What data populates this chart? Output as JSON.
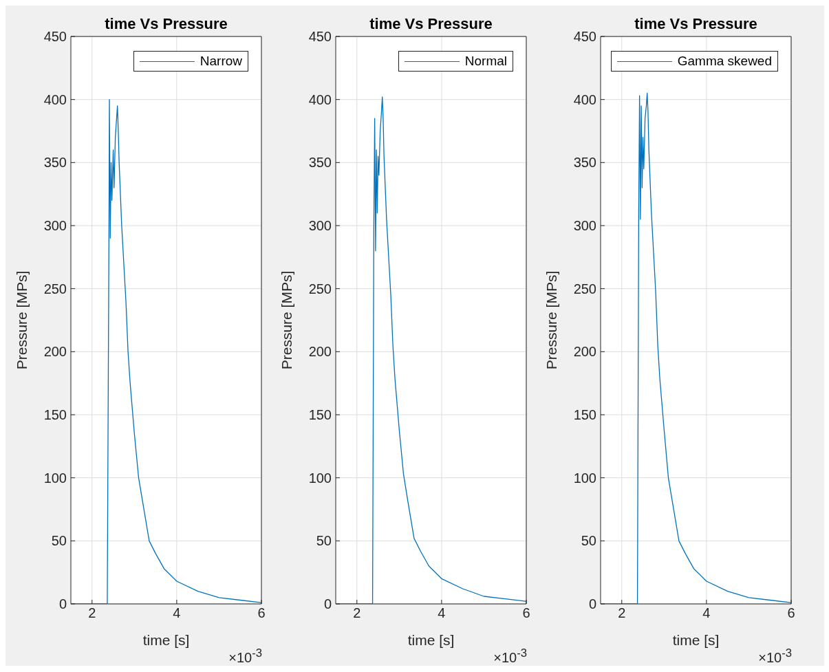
{
  "chart_data": [
    {
      "type": "line",
      "title": "time Vs Pressure",
      "xlabel": "time [s]",
      "ylabel": "Pressure [MPs]",
      "xlim": [
        1.5,
        6
      ],
      "xticks": [
        2,
        4,
        6
      ],
      "ylim": [
        0,
        450
      ],
      "yticks": [
        0,
        50,
        100,
        150,
        200,
        250,
        300,
        350,
        400,
        450
      ],
      "grid": true,
      "legend": "top right",
      "annotations": [
        "×10$^{-3}$"
      ],
      "series": [
        {
          "name": "Narrow",
          "color": "#0072bd",
          "x": [
            1.5,
            2.36,
            2.4,
            2.41,
            2.43,
            2.45,
            2.47,
            2.5,
            2.52,
            2.55,
            2.58,
            2.6,
            2.62,
            2.64,
            2.7,
            2.8,
            2.85,
            2.9,
            3.0,
            3.1,
            3.2,
            3.3,
            3.35,
            3.5,
            3.7,
            4.0,
            4.5,
            5.0,
            5.5,
            6.0
          ],
          "values": [
            0,
            0,
            300,
            400,
            290,
            350,
            320,
            360,
            330,
            370,
            385,
            395,
            375,
            350,
            300,
            240,
            200,
            175,
            135,
            100,
            80,
            60,
            50,
            40,
            28,
            18,
            10,
            5,
            3,
            1
          ]
        }
      ]
    },
    {
      "type": "line",
      "title": "time Vs Pressure",
      "xlabel": "time [s]",
      "ylabel": "Pressure [MPs]",
      "xlim": [
        1.5,
        6
      ],
      "xticks": [
        2,
        4,
        6
      ],
      "ylim": [
        0,
        450
      ],
      "yticks": [
        0,
        50,
        100,
        150,
        200,
        250,
        300,
        350,
        400,
        450
      ],
      "grid": true,
      "legend": "top right",
      "annotations": [
        "×10$^{-3}$"
      ],
      "series": [
        {
          "name": "Normal",
          "color": "#0072bd",
          "x": [
            1.5,
            2.37,
            2.4,
            2.42,
            2.44,
            2.46,
            2.48,
            2.5,
            2.52,
            2.55,
            2.58,
            2.6,
            2.62,
            2.64,
            2.7,
            2.8,
            2.85,
            2.9,
            3.0,
            3.1,
            3.2,
            3.3,
            3.35,
            3.5,
            3.7,
            4.0,
            4.5,
            5.0,
            5.5,
            6.0
          ],
          "values": [
            0,
            0,
            300,
            385,
            280,
            360,
            310,
            355,
            340,
            375,
            390,
            402,
            385,
            355,
            305,
            245,
            205,
            178,
            138,
            103,
            82,
            62,
            52,
            42,
            30,
            20,
            12,
            6,
            4,
            2
          ]
        }
      ]
    },
    {
      "type": "line",
      "title": "time Vs Pressure",
      "xlabel": "time [s]",
      "ylabel": "Pressure [MPs]",
      "xlim": [
        1.5,
        6
      ],
      "xticks": [
        2,
        4,
        6
      ],
      "ylim": [
        0,
        450
      ],
      "yticks": [
        0,
        50,
        100,
        150,
        200,
        250,
        300,
        350,
        400,
        450
      ],
      "grid": true,
      "legend": "top right",
      "annotations": [
        "×10$^{-3}$"
      ],
      "series": [
        {
          "name": "Gamma skewed",
          "color": "#0072bd",
          "x": [
            1.5,
            2.37,
            2.4,
            2.42,
            2.44,
            2.46,
            2.48,
            2.5,
            2.52,
            2.55,
            2.58,
            2.6,
            2.62,
            2.64,
            2.7,
            2.8,
            2.85,
            2.9,
            3.0,
            3.1,
            3.2,
            3.3,
            3.35,
            3.5,
            3.7,
            4.0,
            4.5,
            5.0,
            5.5,
            6.0
          ],
          "values": [
            0,
            0,
            310,
            403,
            305,
            395,
            330,
            370,
            345,
            385,
            395,
            405,
            390,
            360,
            310,
            248,
            205,
            178,
            138,
            100,
            80,
            60,
            50,
            40,
            28,
            18,
            10,
            5,
            3,
            1
          ]
        }
      ]
    }
  ]
}
